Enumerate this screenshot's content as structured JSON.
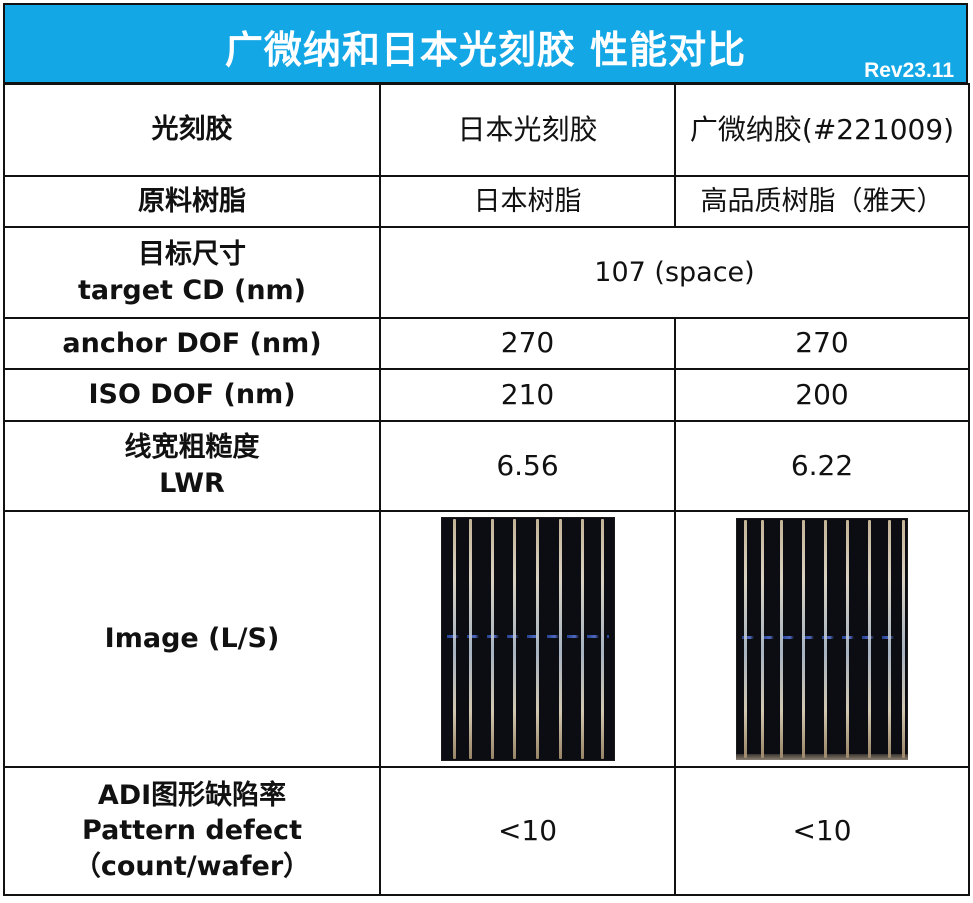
{
  "title": "广微纳和日本光刻胶 性能对比",
  "revision": "Rev23.11",
  "table": {
    "header": {
      "label": "光刻胶",
      "col1": "日本光刻胶",
      "col2": "广微纳胶(#221009)"
    },
    "rows": {
      "resin": {
        "label": "原料树脂",
        "col1": "日本树脂",
        "col2": "高品质树脂（雅天）"
      },
      "target": {
        "label_line1": "目标尺寸",
        "label_line2": "target CD (nm)",
        "value": "107 (space)"
      },
      "anchor": {
        "label": "anchor DOF (nm)",
        "col1": "270",
        "col2": "270"
      },
      "iso": {
        "label": "ISO DOF (nm)",
        "col1": "210",
        "col2": "200"
      },
      "lwr": {
        "label_line1": "线宽粗糙度",
        "label_line2": "LWR",
        "col1": "6.56",
        "col2": "6.22"
      },
      "image": {
        "label": "Image (L/S)"
      },
      "defect": {
        "label_line1": "ADI图形缺陷率",
        "label_line2": "Pattern defect",
        "label_line3": "（count/wafer）",
        "col1": "<10",
        "col2": "<10"
      }
    }
  },
  "colors": {
    "title_bar": "#14a7e6",
    "border": "#111111",
    "sem_background": "#0c0d12"
  }
}
